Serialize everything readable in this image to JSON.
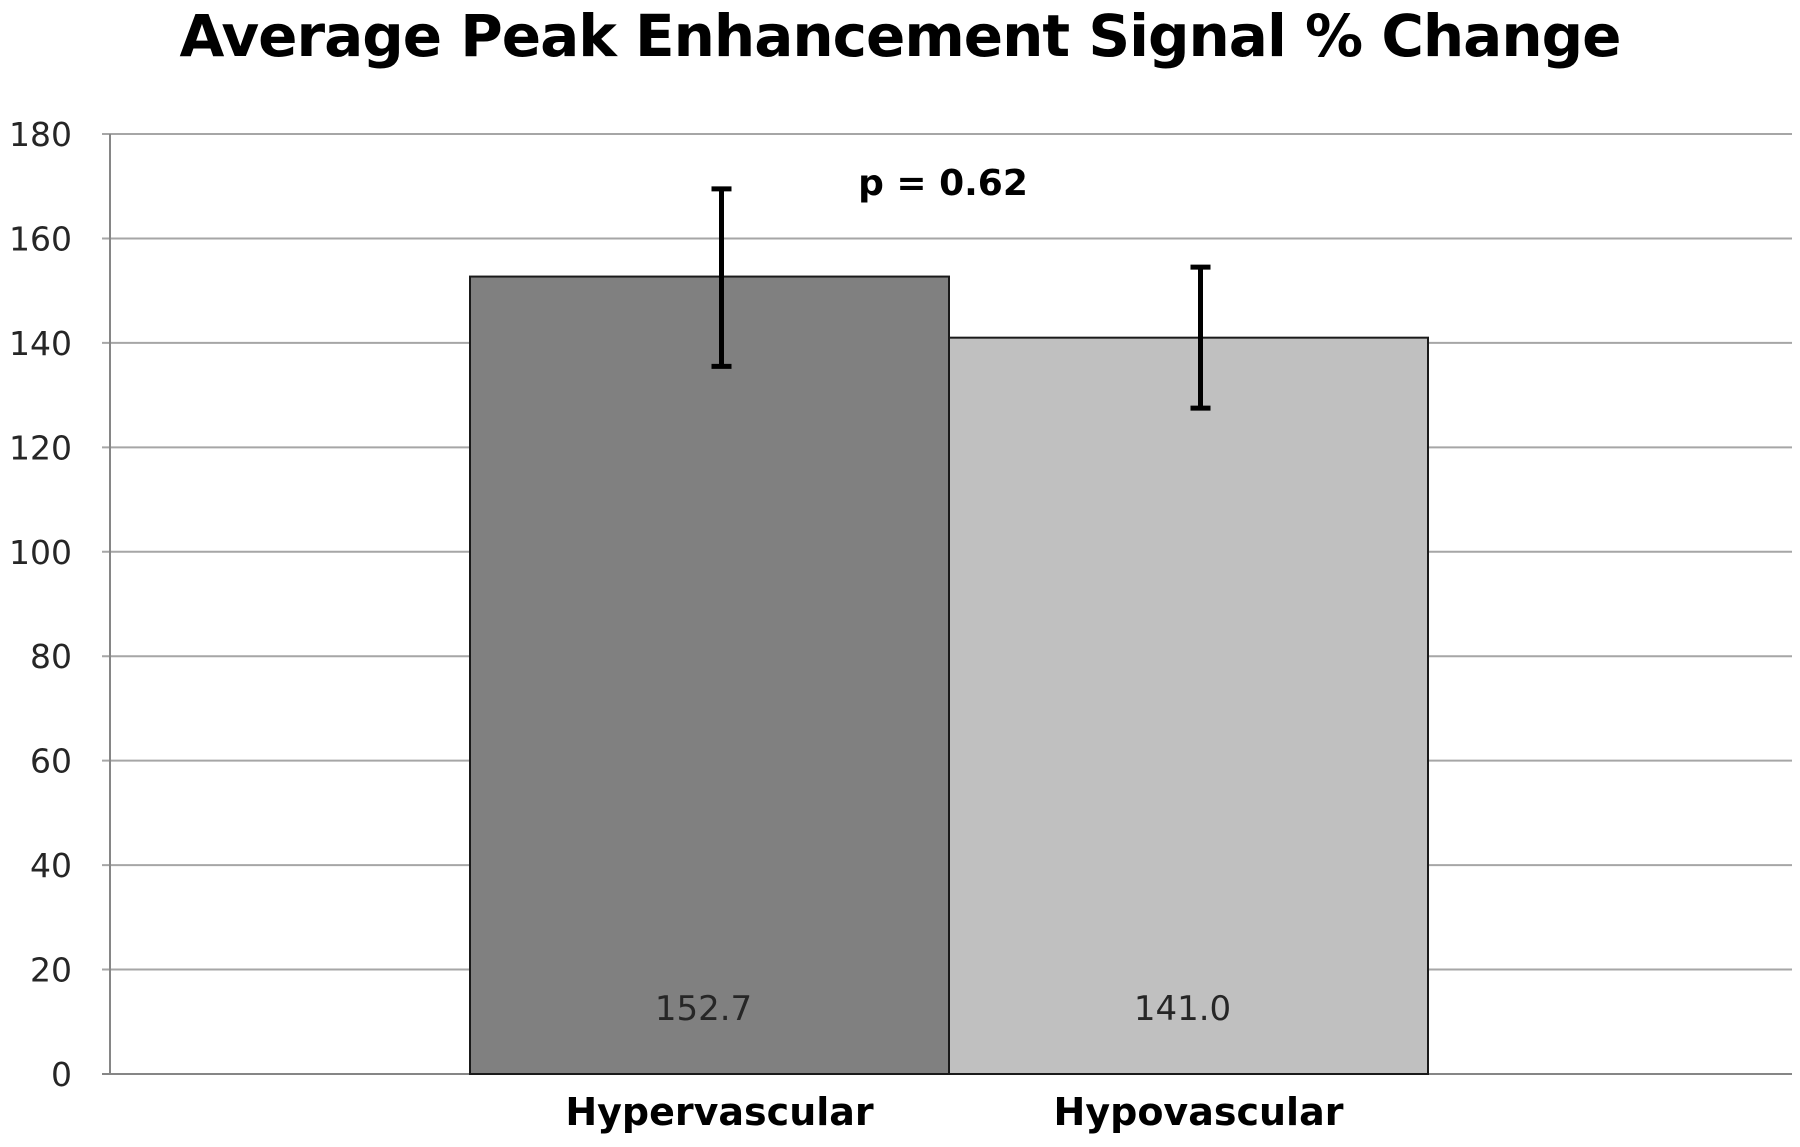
{
  "chart_data": {
    "type": "bar",
    "title": "Average Peak Enhancement Signal % Change",
    "xlabel": "",
    "ylabel": "",
    "categories": [
      "Hypervascular",
      "Hypovascular"
    ],
    "values": [
      152.7,
      141.0
    ],
    "value_labels": [
      "152.7",
      "141.0"
    ],
    "error_bars": [
      {
        "low": 135.5,
        "high": 169.5
      },
      {
        "low": 127.5,
        "high": 154.5
      }
    ],
    "ylim": [
      0,
      180
    ],
    "yticks": [
      0,
      20,
      40,
      60,
      80,
      100,
      120,
      140,
      160,
      180
    ],
    "grid": true,
    "legend": "none",
    "annotation": "p = 0.62",
    "colors": [
      "#808080",
      "#c0c0c0"
    ]
  }
}
